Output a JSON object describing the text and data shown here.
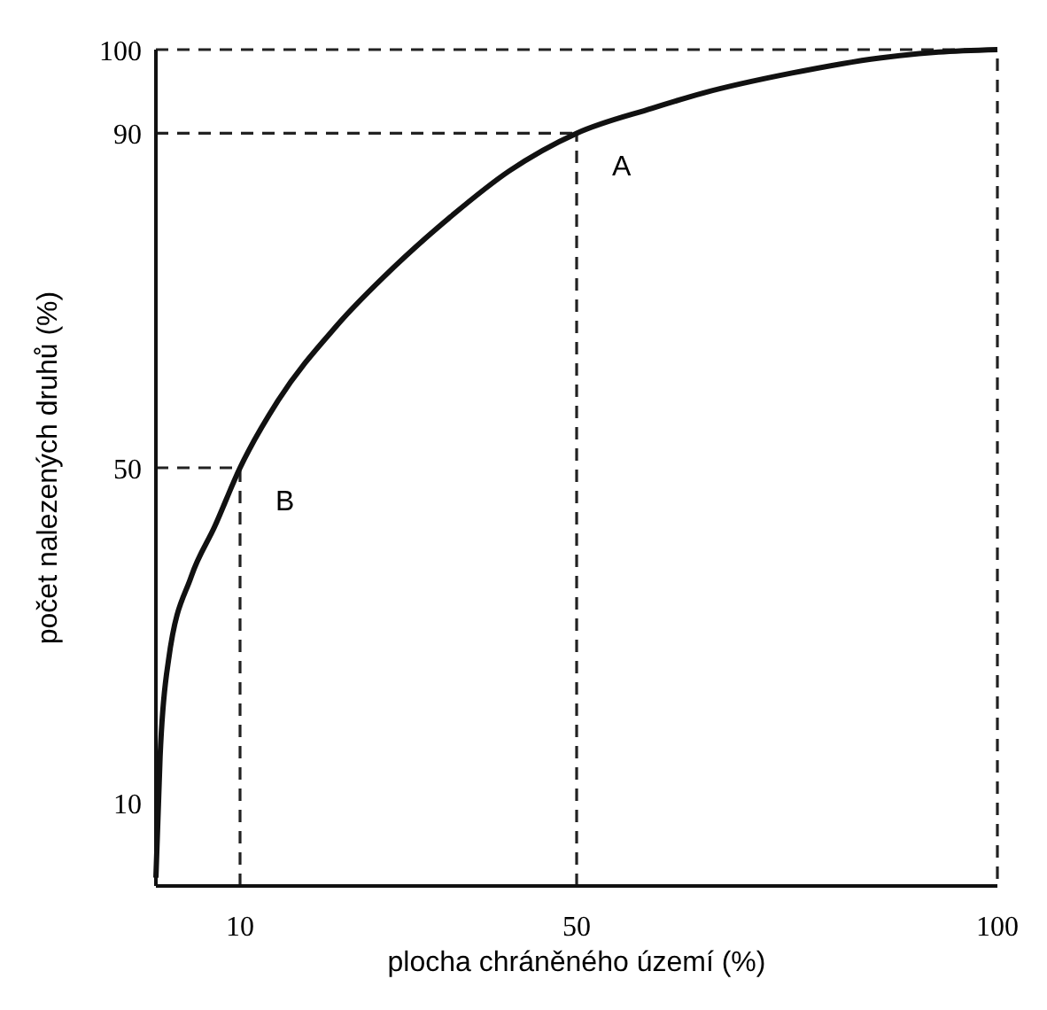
{
  "chart_data": {
    "type": "line",
    "xlabel": "plocha chráněného území (%)",
    "ylabel": "počet nalezených druhů (%)",
    "x": [
      0,
      0.5,
      1.5,
      4.2,
      7,
      10,
      14.5,
      21.5,
      28.3,
      35,
      42,
      50,
      59,
      65,
      75.6,
      86,
      93,
      100
    ],
    "series": [
      {
        "color": "#111111",
        "values": [
          1,
          15.5,
          27,
          37,
          43,
          50,
          58,
          67,
          74,
          80,
          85.5,
          90,
          93,
          94.8,
          97.2,
          99,
          99.7,
          100
        ]
      }
    ],
    "xlim": [
      0,
      100
    ],
    "ylim": [
      0,
      100
    ],
    "xticks": [
      10,
      50,
      100
    ],
    "yticks": [
      10,
      50,
      90,
      100
    ],
    "marker": "none",
    "line_style": "solid",
    "ref_lines": [
      {
        "axis": "y",
        "value": 90,
        "color": "#222222",
        "line_style": "dashed"
      },
      {
        "axis": "x",
        "value": 50,
        "color": "#222222",
        "line_style": "dashed"
      },
      {
        "axis": "y",
        "value": 50,
        "color": "#222222",
        "line_style": "dashed"
      },
      {
        "axis": "x",
        "value": 10,
        "color": "#222222",
        "line_style": "dashed"
      }
    ],
    "annotations": [
      {
        "text": "A",
        "x": 50,
        "y": 90
      },
      {
        "text": "B",
        "x": 10,
        "y": 50
      }
    ]
  }
}
